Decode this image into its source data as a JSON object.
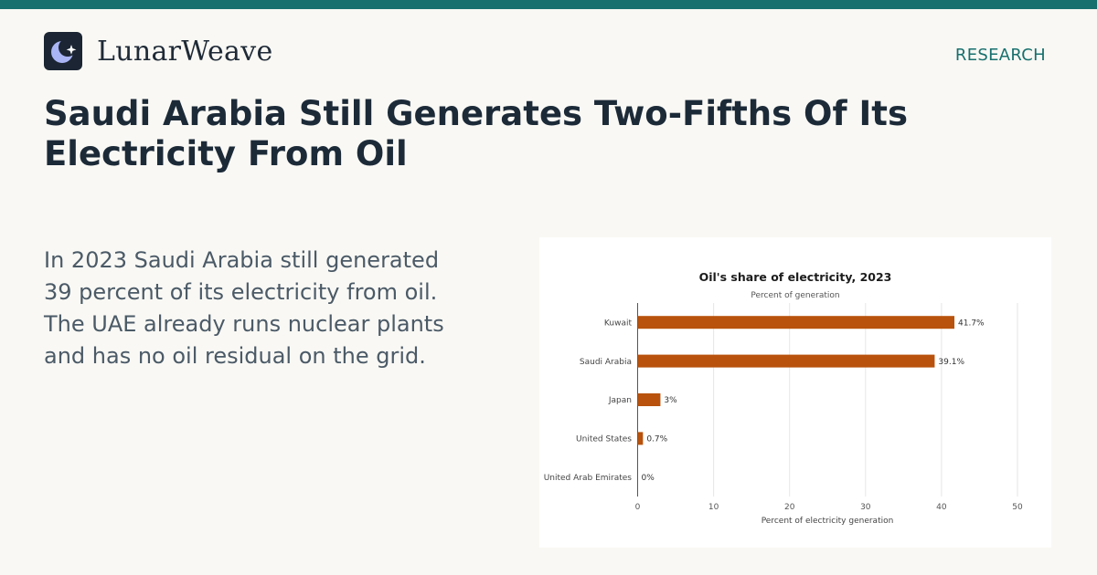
{
  "brand": {
    "name": "LunarWeave",
    "logo_icon": "moon-star-icon"
  },
  "section_label": "RESEARCH",
  "headline": "Saudi Arabia Still Generates Two-Fifths Of Its Electricity From Oil",
  "summary": "In 2023 Saudi Arabia still generated 39 percent of its electricity from oil. The UAE already runs nuclear plants and has no oil residual on the grid.",
  "colors": {
    "accent": "#17706e",
    "bar": "#b8520c",
    "text_dark": "#1c2a38"
  },
  "chart_data": {
    "type": "bar",
    "orientation": "horizontal",
    "title": "Oil's share of electricity, 2023",
    "subtitle": "Percent of generation",
    "xlabel": "Percent of electricity generation",
    "ylabel": "",
    "categories": [
      "Kuwait",
      "Saudi Arabia",
      "Japan",
      "United States",
      "United Arab Emirates"
    ],
    "values": [
      41.7,
      39.1,
      3,
      0.7,
      0
    ],
    "value_labels": [
      "41.7%",
      "39.1%",
      "3%",
      "0.7%",
      "0%"
    ],
    "xlim": [
      0,
      50
    ],
    "xticks": [
      0,
      10,
      20,
      30,
      40,
      50
    ],
    "grid": true,
    "legend": "none"
  }
}
